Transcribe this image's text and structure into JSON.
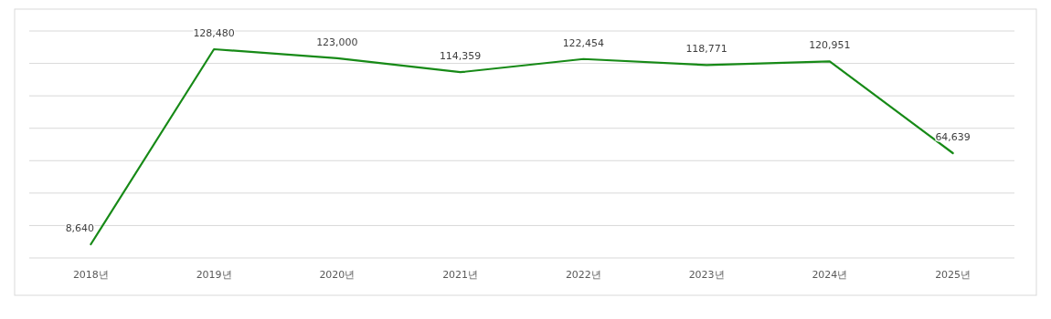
{
  "chart_data": {
    "type": "line",
    "categories": [
      "2018년",
      "2019년",
      "2020년",
      "2021년",
      "2022년",
      "2023년",
      "2024년",
      "2025년"
    ],
    "series": [
      {
        "color": "#178a17",
        "values": [
          8640,
          128480,
          123000,
          114359,
          122454,
          118771,
          120951,
          64639
        ],
        "value_labels": [
          "8,640",
          "128,480",
          "123,000",
          "114,359",
          "122,454",
          "118,771",
          "120,951",
          "64,639"
        ]
      }
    ],
    "tick_labels": "x",
    "grid": "y",
    "marker": "none",
    "line_style": "solid"
  }
}
